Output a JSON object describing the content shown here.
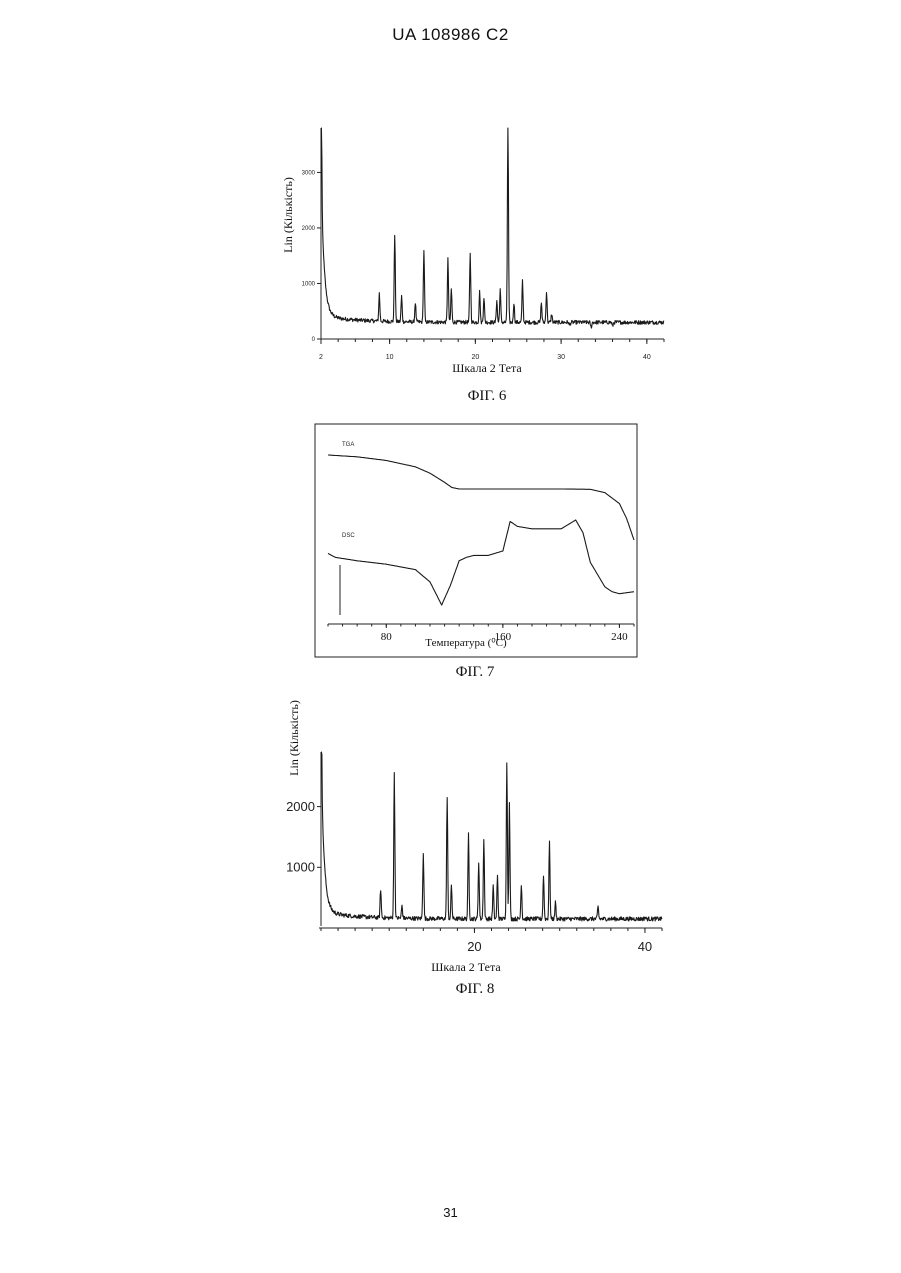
{
  "page": {
    "header": "UA   108986   C2",
    "page_number": "31"
  },
  "chart_data": [
    {
      "id": "fig6",
      "type": "line",
      "caption": "ФІГ. 6",
      "xlabel": "Шкала 2 Тета",
      "ylabel": "Lin (Кількість)",
      "xlim": [
        2,
        42
      ],
      "ylim": [
        0,
        3800
      ],
      "x_ticks": [
        2,
        10,
        20,
        30,
        40
      ],
      "y_ticks": [
        0,
        1000,
        2000,
        3000
      ],
      "y_tick_labels": [
        "0",
        "1000",
        "2000",
        "3000"
      ],
      "baseline": 300,
      "peaks": [
        {
          "x": 2.0,
          "y": 3350
        },
        {
          "x": 8.8,
          "y": 800
        },
        {
          "x": 10.6,
          "y": 1880
        },
        {
          "x": 11.4,
          "y": 760
        },
        {
          "x": 13.0,
          "y": 650
        },
        {
          "x": 14.0,
          "y": 1600
        },
        {
          "x": 16.8,
          "y": 1450
        },
        {
          "x": 17.2,
          "y": 900
        },
        {
          "x": 19.4,
          "y": 1550
        },
        {
          "x": 20.5,
          "y": 850
        },
        {
          "x": 21.0,
          "y": 750
        },
        {
          "x": 22.5,
          "y": 700
        },
        {
          "x": 22.9,
          "y": 900
        },
        {
          "x": 23.8,
          "y": 3850
        },
        {
          "x": 24.5,
          "y": 650
        },
        {
          "x": 25.5,
          "y": 1050
        },
        {
          "x": 27.7,
          "y": 650
        },
        {
          "x": 28.3,
          "y": 850
        },
        {
          "x": 28.9,
          "y": 450
        },
        {
          "x": 31.0,
          "y": 250
        },
        {
          "x": 33.5,
          "y": 200
        },
        {
          "x": 36.0,
          "y": 230
        }
      ]
    },
    {
      "id": "fig7",
      "type": "line",
      "caption": "ФІГ. 7",
      "xlabel": "Температура (⁰C)",
      "xlim": [
        40,
        250
      ],
      "x_ticks": [
        80,
        160,
        240
      ],
      "series": [
        {
          "name": "TGA",
          "x": [
            40,
            60,
            80,
            100,
            110,
            120,
            125,
            130,
            140,
            160,
            180,
            200,
            220,
            230,
            240,
            245,
            250
          ],
          "y": [
            100,
            99.4,
            98.2,
            96.1,
            94,
            91,
            89.3,
            88.8,
            88.8,
            88.8,
            88.8,
            88.8,
            88.7,
            87.6,
            84,
            79,
            72
          ]
        },
        {
          "name": "DSC",
          "x": [
            40,
            45,
            60,
            80,
            100,
            110,
            118,
            124,
            130,
            135,
            140,
            150,
            160,
            165,
            170,
            180,
            190,
            200,
            210,
            215,
            220,
            230,
            235,
            240,
            250
          ],
          "y": [
            0.7,
            0.62,
            0.55,
            0.48,
            0.37,
            0.12,
            -0.35,
            0.05,
            0.55,
            0.62,
            0.66,
            0.66,
            0.75,
            1.35,
            1.25,
            1.2,
            1.2,
            1.2,
            1.38,
            1.12,
            0.52,
            0.02,
            -0.08,
            -0.12,
            -0.08
          ]
        }
      ]
    },
    {
      "id": "fig8",
      "type": "line",
      "caption": "ФІГ. 8",
      "xlabel": "Шкала 2 Тета",
      "ylabel": "Lin (Кількість)",
      "xlim": [
        2,
        42
      ],
      "ylim": [
        0,
        2900
      ],
      "x_ticks": [
        20,
        40
      ],
      "y_ticks": [
        1000,
        2000
      ],
      "y_tick_labels": [
        "1000",
        "2000"
      ],
      "baseline": 150,
      "peaks": [
        {
          "x": 2.0,
          "y": 2450
        },
        {
          "x": 9.0,
          "y": 620
        },
        {
          "x": 10.6,
          "y": 2550
        },
        {
          "x": 11.5,
          "y": 360
        },
        {
          "x": 14.0,
          "y": 1250
        },
        {
          "x": 16.8,
          "y": 2150
        },
        {
          "x": 17.3,
          "y": 700
        },
        {
          "x": 19.3,
          "y": 1550
        },
        {
          "x": 20.5,
          "y": 1100
        },
        {
          "x": 21.1,
          "y": 1450
        },
        {
          "x": 22.2,
          "y": 700
        },
        {
          "x": 22.7,
          "y": 850
        },
        {
          "x": 23.8,
          "y": 2700
        },
        {
          "x": 24.1,
          "y": 2050
        },
        {
          "x": 25.5,
          "y": 720
        },
        {
          "x": 28.1,
          "y": 880
        },
        {
          "x": 28.8,
          "y": 1400
        },
        {
          "x": 29.5,
          "y": 420
        },
        {
          "x": 34.5,
          "y": 350
        },
        {
          "x": 40.0,
          "y": 180
        }
      ]
    }
  ]
}
